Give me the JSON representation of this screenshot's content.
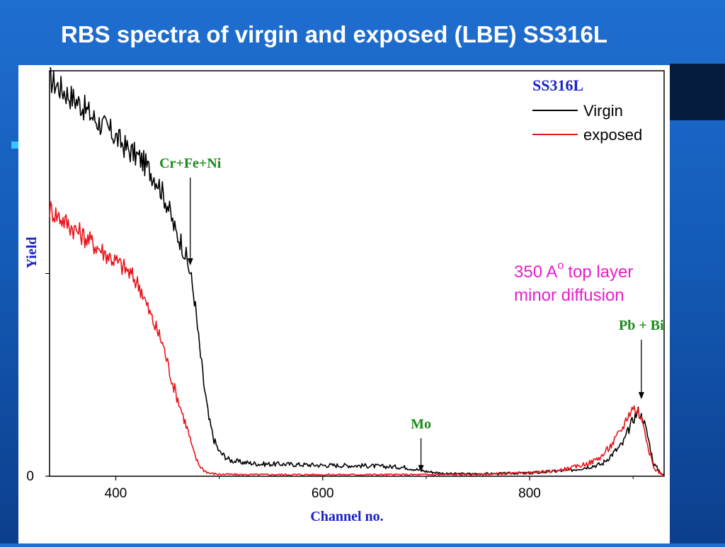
{
  "slide": {
    "title": "RBS spectra of virgin and exposed (LBE) SS316L"
  },
  "colors": {
    "background_top": "#1f6fd0",
    "background_bottom": "#0c3f8c",
    "virgin": "#000000",
    "exposed": "#e8141b",
    "annotation_green": "#1a8a1a",
    "axis_label_blue": "#1a20c8",
    "note_magenta": "#e81ec8"
  },
  "chart_data": {
    "type": "line",
    "title": "SS316L",
    "xlabel": "Channel no.",
    "ylabel": "Yield",
    "xlim": [
      336,
      930
    ],
    "ylim": [
      0,
      100
    ],
    "x_ticks": [
      400,
      600,
      800
    ],
    "y_ticks": [
      0
    ],
    "grid": false,
    "legend_position": "top-right",
    "series": [
      {
        "name": "Virgin",
        "x": [
          336,
          350,
          365,
          380,
          395,
          410,
          425,
          440,
          450,
          458,
          463,
          468,
          472,
          476,
          480,
          485,
          490,
          495,
          500,
          510,
          520,
          540,
          560,
          600,
          640,
          680,
          700,
          720,
          760,
          800,
          840,
          870,
          890,
          900,
          905,
          910,
          915,
          920,
          930
        ],
        "y": [
          98,
          95,
          92,
          88,
          85,
          81,
          78,
          73,
          67,
          60,
          58,
          54,
          50,
          44,
          34,
          23,
          14,
          9,
          6,
          4,
          3.5,
          3,
          3,
          2.7,
          2.6,
          2.2,
          1.2,
          0.6,
          0.6,
          0.8,
          1.5,
          3,
          8,
          14,
          16,
          14,
          9,
          3,
          0
        ]
      },
      {
        "name": "exposed",
        "x": [
          336,
          350,
          365,
          380,
          395,
          410,
          420,
          425,
          430,
          438,
          445,
          450,
          455,
          460,
          465,
          470,
          475,
          480,
          485,
          490,
          495,
          500,
          520,
          560,
          600,
          640,
          680,
          720,
          760,
          800,
          820,
          840,
          860,
          870,
          880,
          890,
          895,
          900,
          905,
          910,
          915,
          920,
          930
        ],
        "y": [
          66,
          63,
          60,
          57,
          54,
          51,
          48,
          46,
          42,
          37,
          33,
          28,
          23,
          19,
          15,
          11,
          6,
          3,
          1.5,
          0.8,
          0.6,
          0.5,
          0.4,
          0.4,
          0.4,
          0.4,
          0.4,
          0.4,
          0.5,
          0.8,
          1.2,
          2,
          3.5,
          5,
          8,
          12,
          15,
          17,
          16,
          13,
          7,
          2,
          0
        ]
      }
    ],
    "annotations": [
      {
        "label": "Cr+Fe+Ni",
        "x": 472,
        "y": 52
      },
      {
        "label": "Mo",
        "x": 695,
        "y": 1
      },
      {
        "label": "Pb + Bi",
        "x": 908,
        "y": 19
      }
    ],
    "note_lines": [
      "350 A",
      "top layer",
      "minor diffusion"
    ],
    "note_superscript": "o"
  }
}
